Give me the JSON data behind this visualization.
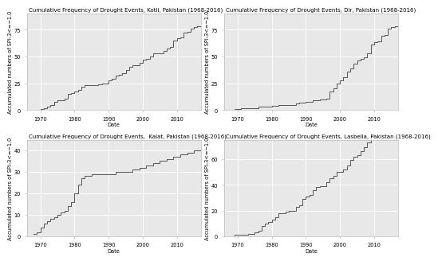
{
  "panels": [
    {
      "title": "Cumulative Frequency of Drought Events, Kotli, Pakistan (1968-2016)",
      "ylabel": "Accumulated numbers of SPI-3<=−1.0",
      "xlabel": "Date",
      "ylim": [
        0,
        90
      ],
      "yticks": [
        0,
        25,
        50,
        75
      ],
      "xticks": [
        1970,
        1980,
        1990,
        2000,
        2010
      ],
      "xlim": [
        1966,
        2017
      ],
      "seed": 15,
      "rate_early": 1.8,
      "rate_mid": 1.8,
      "rate_late": 1.8,
      "break1": 1985,
      "break2": 1998
    },
    {
      "title": "Cumulative Frequency of Drought Events, Dir, Pakistan (1968-2016)",
      "ylabel": "Accumulated numbers of SPI-3<=−1.0",
      "xlabel": "Date",
      "ylim": [
        0,
        90
      ],
      "yticks": [
        0,
        25,
        50,
        75
      ],
      "xticks": [
        1970,
        1980,
        1990,
        2000,
        2010
      ],
      "xlim": [
        1966,
        2017
      ],
      "seed": 77,
      "rate_early": 0.5,
      "rate_mid": 1.0,
      "rate_late": 3.5,
      "break1": 1984,
      "break2": 1997
    },
    {
      "title": "Cumulative Frequency of Drought Events,  Kalat, Pakistan (1968-2016)",
      "ylabel": "Accumulated numbers of SPI-3<=−1.0",
      "xlabel": "Date",
      "ylim": [
        0,
        45
      ],
      "yticks": [
        0,
        10,
        20,
        30,
        40
      ],
      "xticks": [
        1970,
        1980,
        1990,
        2000,
        2010
      ],
      "xlim": [
        1966,
        2017
      ],
      "seed": 30,
      "rate_early": 0.0,
      "rate_mid": 0.0,
      "rate_late": 0.0,
      "break1": 1980,
      "break2": 2000
    },
    {
      "title": "Cumulative Frequency of Drought Events, Lasbella, Pakistan (1968-2016)",
      "ylabel": "Accumulated numbers of SPI-3<=−1.0",
      "xlabel": "Date",
      "ylim": [
        0,
        75
      ],
      "yticks": [
        0,
        20,
        40,
        60
      ],
      "xticks": [
        1970,
        1980,
        1990,
        2000,
        2010
      ],
      "xlim": [
        1966,
        2017
      ],
      "seed": 55,
      "rate_early": 0.3,
      "rate_mid": 1.2,
      "rate_late": 2.5,
      "break1": 1974,
      "break2": 1988
    }
  ],
  "line_color": "#555555",
  "line_width": 0.7,
  "panel_bg": "#e8e8e8",
  "grid_color": "white",
  "title_fontsize": 5.0,
  "label_fontsize": 4.8,
  "tick_fontsize": 4.8
}
